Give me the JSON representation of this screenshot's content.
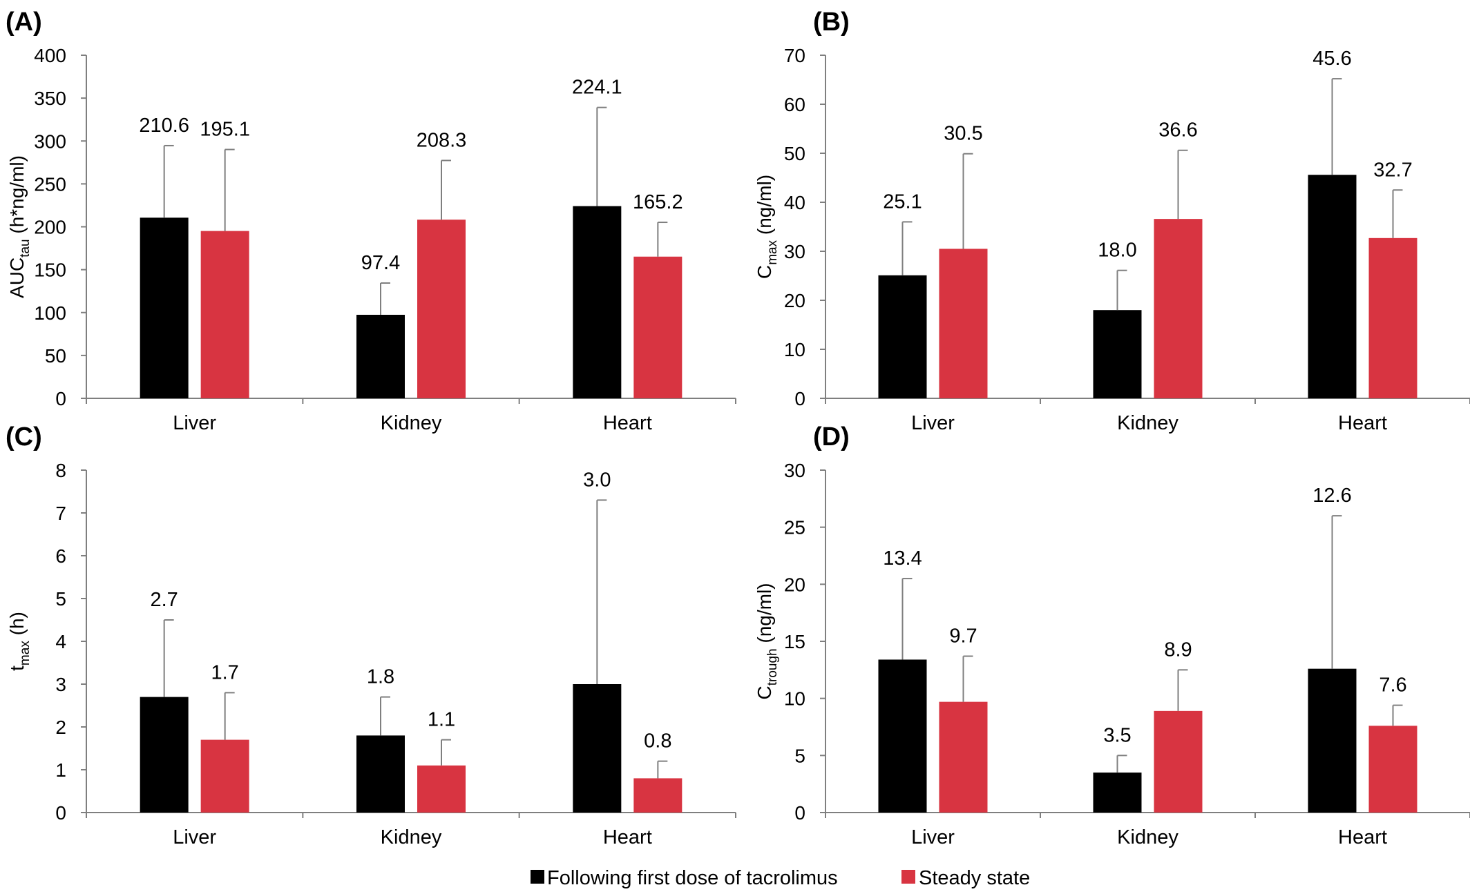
{
  "colors": {
    "first_dose": "#000000",
    "steady_state": "#d83441",
    "axis": "#7f7f7f",
    "error_bar": "#7f7f7f"
  },
  "legend": {
    "first_dose_label": "Following first dose of tacrolimus",
    "steady_state_label": "Steady state"
  },
  "chart_data": [
    {
      "panel": "(A)",
      "type": "bar",
      "ylabel_main": "AUC",
      "ylabel_sub": "tau",
      "ylabel_rest": " (h*ng/ml)",
      "categories": [
        "Liver",
        "Kidney",
        "Heart"
      ],
      "ylim": [
        0,
        400
      ],
      "yticks": [
        0,
        50,
        100,
        150,
        200,
        250,
        300,
        350,
        400
      ],
      "series": [
        {
          "name": "Following first dose of tacrolimus",
          "values": [
            210.6,
            97.4,
            224.1
          ],
          "errors": [
            84,
            37,
            115
          ],
          "labels": [
            "210.6",
            "97.4",
            "224.1"
          ]
        },
        {
          "name": "Steady state",
          "values": [
            195.1,
            208.3,
            165.2
          ],
          "errors": [
            95,
            69,
            40
          ],
          "labels": [
            "195.1",
            "208.3",
            "165.2"
          ]
        }
      ]
    },
    {
      "panel": "(B)",
      "type": "bar",
      "ylabel_main": "C",
      "ylabel_sub": "max",
      "ylabel_rest": " (ng/ml)",
      "categories": [
        "Liver",
        "Kidney",
        "Heart"
      ],
      "ylim": [
        0,
        70
      ],
      "yticks": [
        0,
        10,
        20,
        30,
        40,
        50,
        60,
        70
      ],
      "series": [
        {
          "name": "Following first dose of tacrolimus",
          "values": [
            25.1,
            18.0,
            45.6
          ],
          "errors": [
            10.9,
            8.1,
            19.6
          ],
          "labels": [
            "25.1",
            "18.0",
            "45.6"
          ]
        },
        {
          "name": "Steady state",
          "values": [
            30.5,
            36.6,
            32.7
          ],
          "errors": [
            19.4,
            14.0,
            9.8
          ],
          "labels": [
            "30.5",
            "36.6",
            "32.7"
          ]
        }
      ]
    },
    {
      "panel": "(C)",
      "type": "bar",
      "ylabel_main": "t",
      "ylabel_sub": "max",
      "ylabel_rest": " (h)",
      "categories": [
        "Liver",
        "Kidney",
        "Heart"
      ],
      "ylim": [
        0,
        8
      ],
      "yticks": [
        0,
        1,
        2,
        3,
        4,
        5,
        6,
        7,
        8
      ],
      "series": [
        {
          "name": "Following first dose of tacrolimus",
          "values": [
            2.7,
            1.8,
            3.0
          ],
          "errors": [
            1.8,
            0.9,
            4.3
          ],
          "labels": [
            "2.7",
            "1.8",
            "3.0"
          ]
        },
        {
          "name": "Steady state",
          "values": [
            1.7,
            1.1,
            0.8
          ],
          "errors": [
            1.1,
            0.6,
            0.4
          ],
          "labels": [
            "1.7",
            "1.1",
            "0.8"
          ]
        }
      ]
    },
    {
      "panel": "(D)",
      "type": "bar",
      "ylabel_main": "C",
      "ylabel_sub": "trough",
      "ylabel_rest": " (ng/ml)",
      "categories": [
        "Liver",
        "Kidney",
        "Heart"
      ],
      "ylim": [
        0,
        30
      ],
      "yticks": [
        0,
        5,
        10,
        15,
        20,
        25,
        30
      ],
      "series": [
        {
          "name": "Following first dose of tacrolimus",
          "values": [
            13.4,
            3.5,
            12.6
          ],
          "errors": [
            7.1,
            1.5,
            13.4
          ],
          "labels": [
            "13.4",
            "3.5",
            "12.6"
          ]
        },
        {
          "name": "Steady state",
          "values": [
            9.7,
            8.9,
            7.6
          ],
          "errors": [
            4.0,
            3.6,
            1.8
          ],
          "labels": [
            "9.7",
            "8.9",
            "7.6"
          ]
        }
      ]
    }
  ]
}
